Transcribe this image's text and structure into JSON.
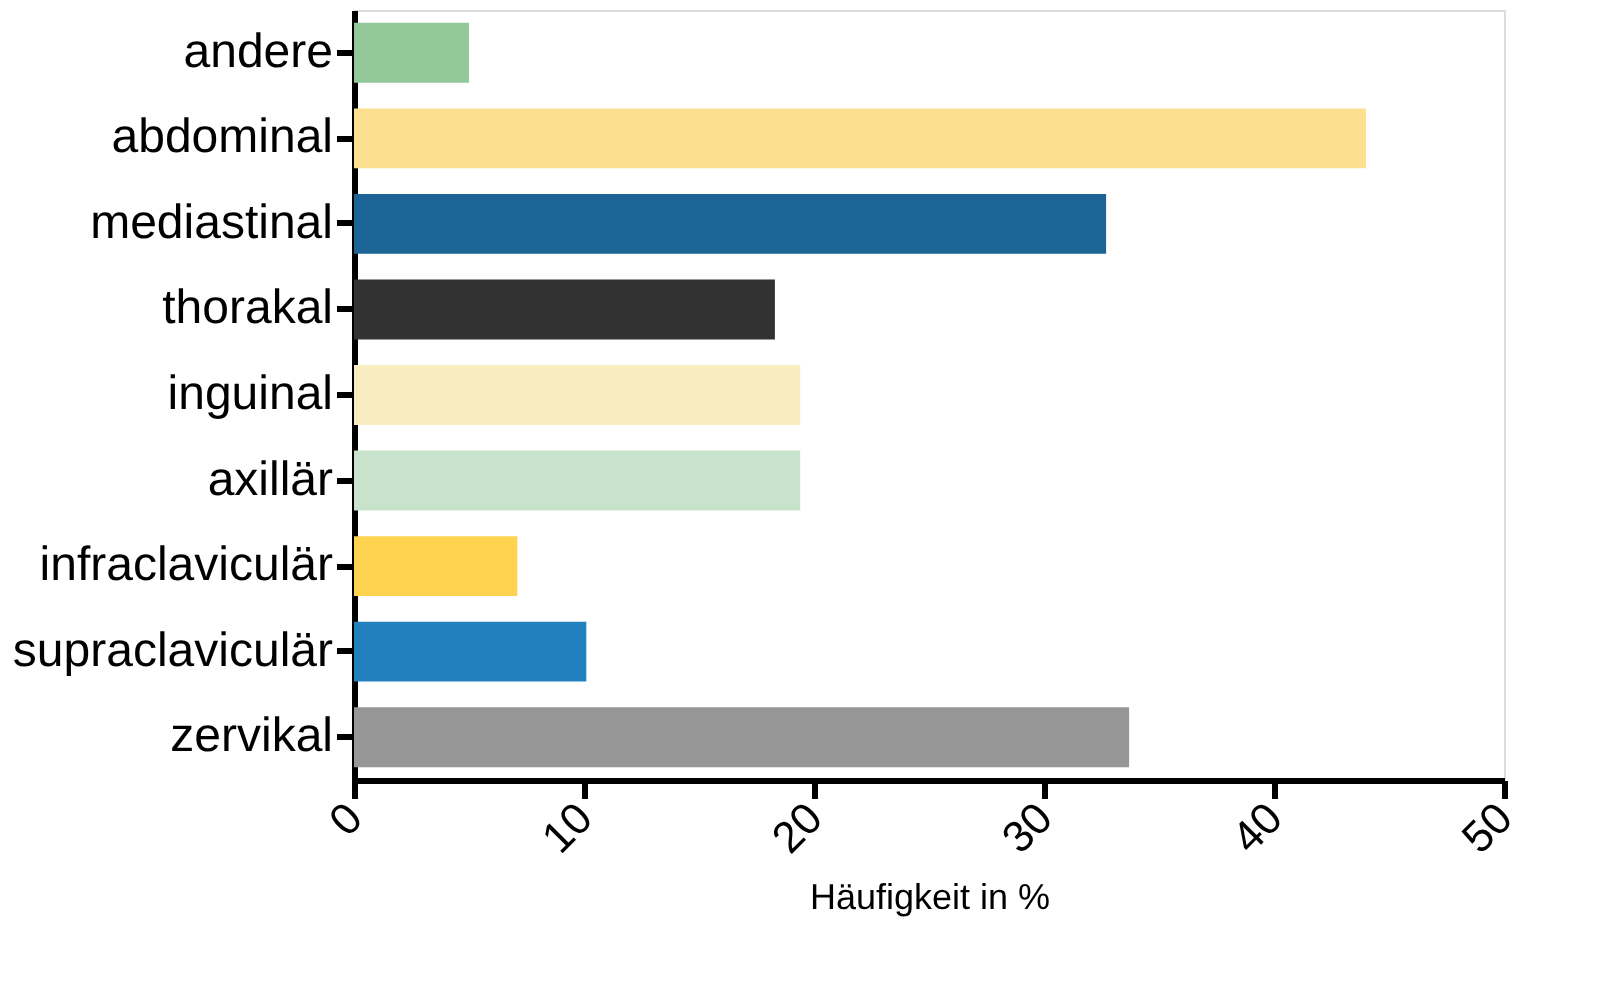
{
  "chart_data": {
    "type": "bar",
    "orientation": "horizontal",
    "xlabel": "Häufigkeit in %",
    "categories": [
      "andere",
      "abdominal",
      "mediastinal",
      "thorakal",
      "inguinal",
      "axillär",
      "infraclaviculär",
      "supraclaviculär",
      "zervikal"
    ],
    "values": [
      5.0,
      44.0,
      32.7,
      18.3,
      19.4,
      19.4,
      7.1,
      10.1,
      33.7
    ],
    "colors": [
      "#93c89a",
      "#fce090",
      "#1d6496",
      "#323232",
      "#f8ecc0",
      "#c7e3cb",
      "#fdd34f",
      "#2280bf",
      "#969696"
    ],
    "xlim": [
      0,
      50
    ],
    "xticks": [
      0,
      10,
      20,
      30,
      40,
      50
    ],
    "grid": false,
    "legend": false
  }
}
